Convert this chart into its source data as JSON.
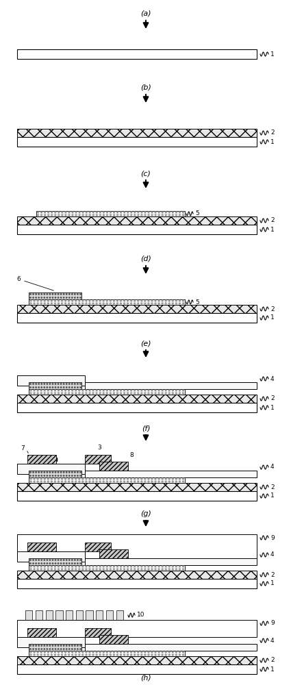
{
  "fig_width": 4.25,
  "fig_height": 10.0,
  "dpi": 100,
  "bg_color": "#ffffff",
  "colors": {
    "substrate_bg": "#ffffff",
    "gate_insulator_bg": "#e8e8e8",
    "gate_insulator_line": "#888888",
    "active_bg": "#f0f0f0",
    "active_dot": "#aaaaaa",
    "gate_metal_bg": "#d0d0d0",
    "gate_metal_dot": "#555555",
    "passivation_bg": "#f0fff0",
    "passivation_line": "#aaccaa",
    "source_drain_bg": "#c0c0c0",
    "source_drain_line": "#444444",
    "top_passivation_bg": "#f8fff8",
    "pixel_bg": "#f0f0f0",
    "pixel_line": "#555555"
  },
  "panels": [
    {
      "label": "(a)",
      "has_arrow_below": true
    },
    {
      "label": "(b)",
      "has_arrow_below": true
    },
    {
      "label": "(c)",
      "has_arrow_below": true
    },
    {
      "label": "(d)",
      "has_arrow_below": true
    },
    {
      "label": "(e)",
      "has_arrow_below": true
    },
    {
      "label": "(f)",
      "has_arrow_below": true
    },
    {
      "label": "(g)",
      "has_arrow_below": true
    },
    {
      "label": "(h)",
      "has_arrow_below": false
    }
  ]
}
